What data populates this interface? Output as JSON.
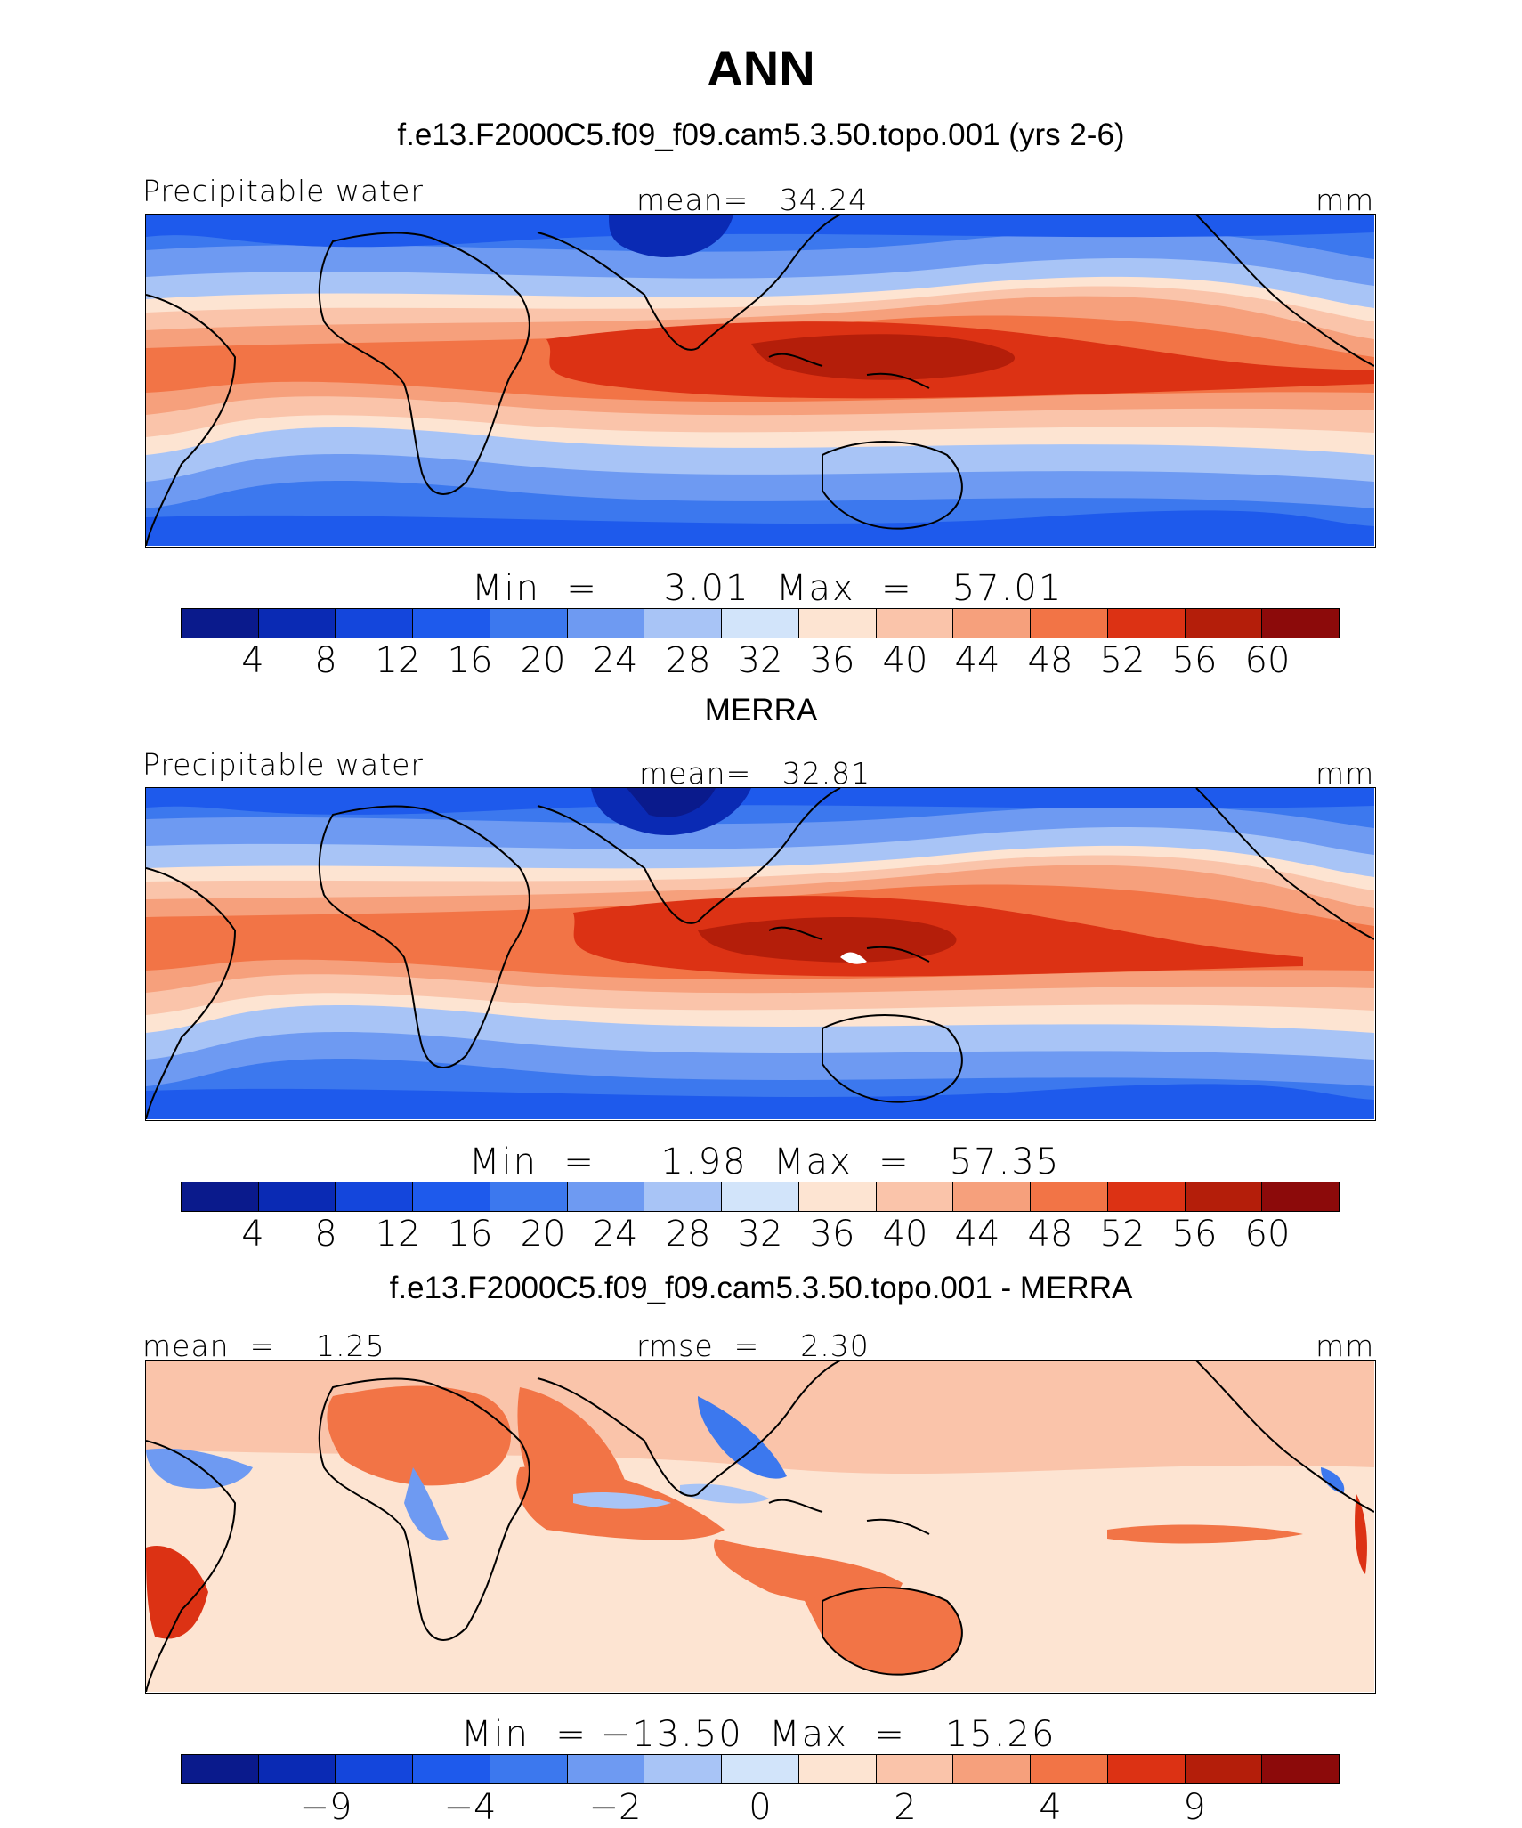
{
  "main_title": "ANN",
  "panels": [
    {
      "title": "f.e13.F2000C5.f09_f09.cam5.3.50.topo.001 (yrs 2-6)",
      "left_label": "Precipitable water",
      "center_label": "mean=   34.24",
      "units": "mm",
      "stats": "Min  =     3.01  Max  =   57.01",
      "tick_labels": [
        "4",
        "8",
        "12",
        "16",
        "20",
        "24",
        "28",
        "32",
        "36",
        "40",
        "44",
        "48",
        "52",
        "56",
        "60"
      ]
    },
    {
      "title": "MERRA",
      "left_label": "Precipitable water",
      "center_label": "mean=   32.81",
      "units": "mm",
      "stats": "Min  =     1.98  Max  =   57.35",
      "tick_labels": [
        "4",
        "8",
        "12",
        "16",
        "20",
        "24",
        "28",
        "32",
        "36",
        "40",
        "44",
        "48",
        "52",
        "56",
        "60"
      ]
    },
    {
      "title": "f.e13.F2000C5.f09_f09.cam5.3.50.topo.001 - MERRA",
      "left_label": "mean  =    1.25",
      "center_label": "rmse  =    2.30",
      "units": "mm",
      "stats": "Min  = −13.50  Max  =   15.26",
      "tick_labels": [
        "−9",
        "−4",
        "−2",
        "0",
        "2",
        "4",
        "9"
      ]
    }
  ],
  "colorbar_colors": [
    "#0a1a8c",
    "#0a2ab4",
    "#1446dc",
    "#1e5aec",
    "#3c78ee",
    "#6e9af2",
    "#a8c4f6",
    "#d2e4fa",
    "#fde4d2",
    "#fac4aa",
    "#f6a07c",
    "#f27446",
    "#dc3214",
    "#b41e0a",
    "#8c0a0a"
  ],
  "chart_data": {
    "type": "heatmap",
    "title": "ANN",
    "variable": "Precipitable water",
    "units": "mm",
    "maps": [
      {
        "name": "f.e13.F2000C5.f09_f09.cam5.3.50.topo.001 (yrs 2-6)",
        "mean": 34.24,
        "min": 3.01,
        "max": 57.01,
        "levels": [
          4,
          8,
          12,
          16,
          20,
          24,
          28,
          32,
          36,
          40,
          44,
          48,
          52,
          56,
          60
        ]
      },
      {
        "name": "MERRA",
        "mean": 32.81,
        "min": 1.98,
        "max": 57.35,
        "levels": [
          4,
          8,
          12,
          16,
          20,
          24,
          28,
          32,
          36,
          40,
          44,
          48,
          52,
          56,
          60
        ]
      },
      {
        "name": "f.e13.F2000C5.f09_f09.cam5.3.50.topo.001 - MERRA",
        "mean": 1.25,
        "rmse": 2.3,
        "min": -13.5,
        "max": 15.26,
        "levels": [
          -9,
          -4,
          -2,
          0,
          2,
          4,
          9
        ]
      }
    ]
  }
}
